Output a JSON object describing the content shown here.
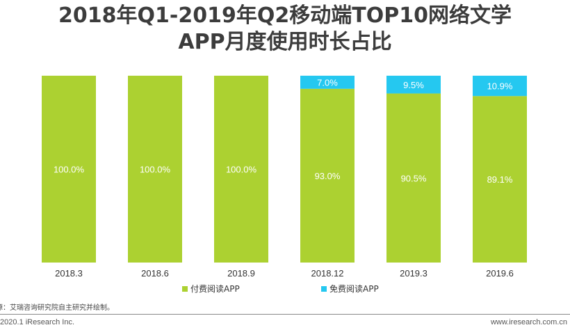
{
  "title_line1": "2018年Q1-2019年Q2移动端TOP10网络文学",
  "title_line2": "APP月度使用时长占比",
  "chart_data": {
    "type": "bar",
    "stacked": true,
    "percent": true,
    "categories": [
      "2018.3",
      "2018.6",
      "2018.9",
      "2018.12",
      "2019.3",
      "2019.6"
    ],
    "series": [
      {
        "name": "付费阅读APP",
        "color": "#acd131",
        "values": [
          100.0,
          100.0,
          100.0,
          93.0,
          90.5,
          89.1
        ]
      },
      {
        "name": "免费阅读APP",
        "color": "#25c8f0",
        "values": [
          0,
          0,
          0,
          7.0,
          9.5,
          10.9
        ]
      }
    ],
    "ylim": [
      0,
      100
    ],
    "legend_position": "bottom"
  },
  "source": "源：艾瑞咨询研究院自主研究并绘制。",
  "copyright": "2020.1 iResearch Inc.",
  "website": "www.iresearch.com.cn"
}
